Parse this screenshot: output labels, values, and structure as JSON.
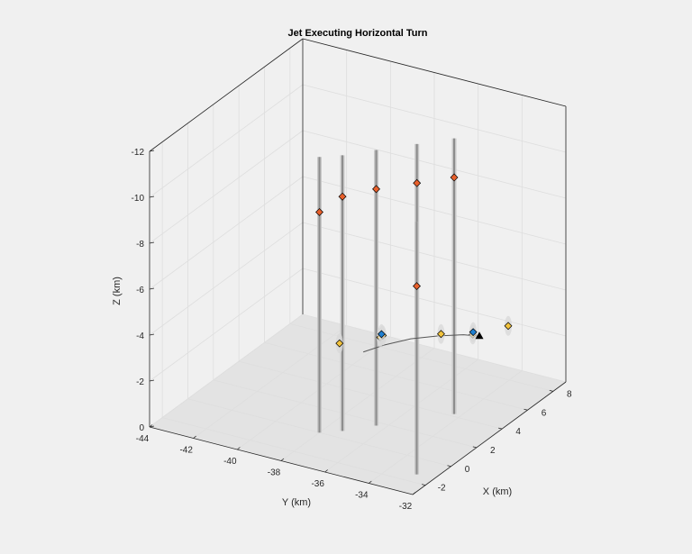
{
  "chart_data": {
    "type": "scatter",
    "title": "Jet Executing Horizontal Turn",
    "xlabel": "X (km)",
    "ylabel": "Y (km)",
    "zlabel": "Z (km)",
    "xlim": [
      -3,
      9
    ],
    "ylim": [
      -44,
      -32
    ],
    "zlim": [
      -12,
      0
    ],
    "z_reversed": true,
    "xticks": [
      "-2",
      "0",
      "2",
      "4",
      "6",
      "8"
    ],
    "yticks": [
      "-44",
      "-42",
      "-40",
      "-38",
      "-36",
      "-34",
      "-32"
    ],
    "zticks": [
      "0",
      "-2",
      "-4",
      "-6",
      "-8",
      "-10",
      "-12"
    ],
    "grid": true,
    "colors": {
      "background": "#f0f0f0",
      "floor": "#e3e3e3",
      "trajectory": "#555555",
      "red_marker": "#e8602c",
      "yellow_marker": "#f2c33c",
      "blue_marker": "#1f7fd0",
      "truth_marker": "#000000",
      "error_bar": "#8c8c8c"
    },
    "trajectory": [
      {
        "x": 0.0,
        "y": -36.0,
        "z": -4.0
      },
      {
        "x": 1.0,
        "y": -35.6,
        "z": -4.0
      },
      {
        "x": 2.0,
        "y": -35.0,
        "z": -4.0
      },
      {
        "x": 2.8,
        "y": -34.2,
        "z": -4.0
      },
      {
        "x": 3.4,
        "y": -33.4,
        "z": -4.0
      },
      {
        "x": 3.6,
        "y": -32.8,
        "z": -4.0
      }
    ],
    "truth_marker": {
      "x": 3.6,
      "y": -32.8,
      "z": -4.0
    },
    "series": [
      {
        "marker": "red_marker",
        "points": [
          {
            "x": 0.0,
            "y": -38.0,
            "z": -9.6
          },
          {
            "x": 0.6,
            "y": -37.3,
            "z": -10.2
          },
          {
            "x": 1.7,
            "y": -36.4,
            "z": -10.3
          },
          {
            "x": 3.0,
            "y": -35.3,
            "z": -10.3
          },
          {
            "x": 4.2,
            "y": -34.3,
            "z": -10.3
          },
          {
            "x": 2.3,
            "y": -34.9,
            "z": -6.2
          }
        ]
      },
      {
        "marker": "yellow_marker",
        "points": [
          {
            "x": 0.2,
            "y": -37.2,
            "z": -4.0
          },
          {
            "x": 1.5,
            "y": -36.1,
            "z": -4.0
          },
          {
            "x": 1.7,
            "y": -36.1,
            "z": -4.0
          },
          {
            "x": 3.0,
            "y": -34.2,
            "z": -4.0
          },
          {
            "x": 3.6,
            "y": -33.1,
            "z": -4.0
          },
          {
            "x": 5.0,
            "y": -32.3,
            "z": -4.0
          }
        ]
      },
      {
        "marker": "blue_marker",
        "points": [
          {
            "x": 1.6,
            "y": -36.1,
            "z": -4.1
          },
          {
            "x": 3.8,
            "y": -33.2,
            "z": -4.0
          }
        ]
      }
    ],
    "error_bars": [
      {
        "x": 0.0,
        "y": -38.0,
        "zmin": -12.0,
        "zmax": 0.0
      },
      {
        "x": 0.6,
        "y": -37.3,
        "zmin": -12.0,
        "zmax": 0.0
      },
      {
        "x": 1.7,
        "y": -36.4,
        "zmin": -12.0,
        "zmax": 0.0
      },
      {
        "x": 3.0,
        "y": -35.3,
        "zmin": -12.0,
        "zmax": 0.0
      },
      {
        "x": 4.2,
        "y": -34.3,
        "zmin": -12.0,
        "zmax": 0.0
      },
      {
        "x": 2.3,
        "y": -34.9,
        "zmin": -9.0,
        "zmax": 2.0
      }
    ]
  }
}
